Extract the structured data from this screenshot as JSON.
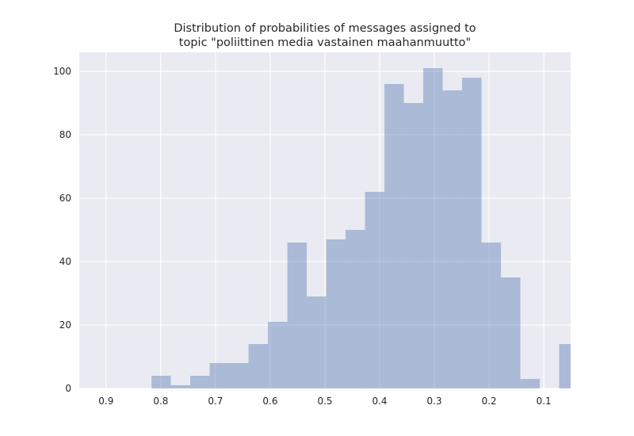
{
  "chart_data": {
    "type": "histogram",
    "title": [
      "Distribution of probabilities of messages assigned to",
      "topic \"poliittinen media vastainen maahanmuutto\""
    ],
    "bins": [
      0.817,
      0.7816,
      0.7461,
      0.7106,
      0.6751,
      0.6396,
      0.6041,
      0.5686,
      0.5332,
      0.4977,
      0.4622,
      0.4267,
      0.3912,
      0.3557,
      0.3203,
      0.2848,
      0.2493,
      0.2138,
      0.1783,
      0.1428,
      0.1074,
      0.0719,
      0.0364
    ],
    "values": [
      4,
      1,
      4,
      8,
      8,
      14,
      21,
      46,
      29,
      47,
      50,
      62,
      96,
      90,
      101,
      94,
      98,
      46,
      35,
      3,
      0,
      14
    ],
    "color": "#4c72b0",
    "xlim": [
      0.949,
      0.051
    ],
    "xticks": [
      0.9,
      0.8,
      0.7,
      0.6,
      0.5,
      0.4,
      0.3,
      0.2,
      0.1
    ],
    "ylim": [
      0,
      106
    ],
    "yticks": [
      0,
      20,
      40,
      60,
      80,
      100
    ],
    "grid": true
  }
}
